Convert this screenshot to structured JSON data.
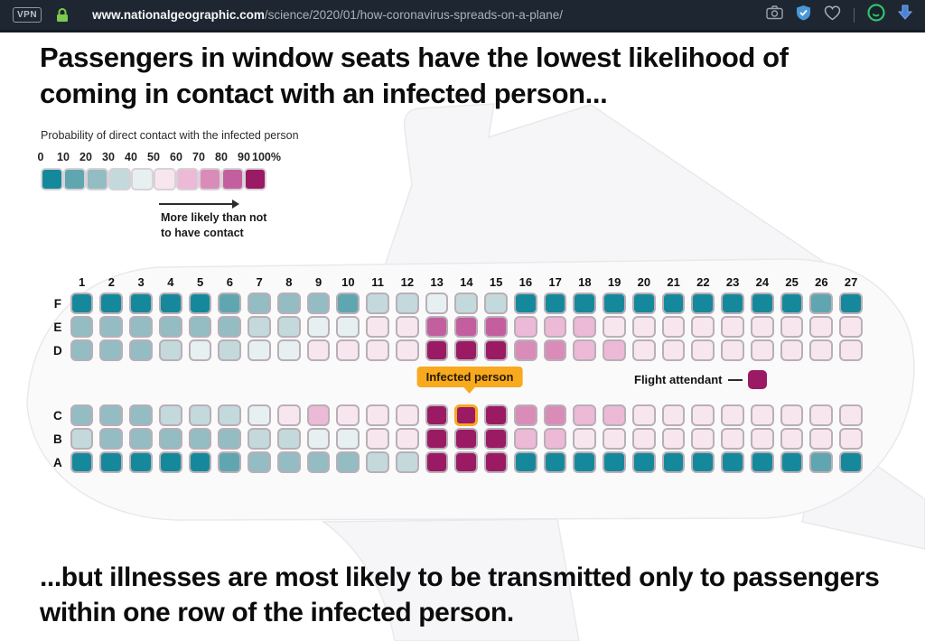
{
  "browser": {
    "vpn_label": "VPN",
    "url_domain": "www.nationalgeographic.com",
    "url_path": "/science/2020/01/how-coronavirus-spreads-on-a-plane/",
    "lock_color": "#7cc94f",
    "shield_color": "#4a97d8",
    "circle_icon_color": "#35c06b",
    "download_color": "#4a82d8",
    "bar_background": "#1e2731"
  },
  "headline": "Passengers in window seats have the lowest likelihood of coming in contact with an infected person...",
  "footline": "...but illnesses are most likely to be transmitted only to passengers within one row of the infected person.",
  "annotations": {
    "infected_label": "Infected person",
    "attendant_label": "Flight attendant",
    "callout_color": "#f8a91d"
  },
  "chart_data": {
    "type": "heatmap",
    "title": "Probability of direct contact with the infected person",
    "legend": {
      "tick_labels": [
        "0",
        "10",
        "20",
        "30",
        "40",
        "50",
        "60",
        "70",
        "80",
        "90",
        "100%"
      ],
      "bucket_labels": [
        "0-10",
        "10-20",
        "20-30",
        "30-40",
        "40-50",
        "50-60",
        "60-70",
        "70-80",
        "80-90",
        "90-100"
      ],
      "colors": [
        "#15899b",
        "#5fa6b0",
        "#93bcc3",
        "#c4d9dc",
        "#e7f0f1",
        "#f8e6ef",
        "#ecb9d6",
        "#da8cb8",
        "#c45f9f",
        "#9a1a64"
      ],
      "arrow_note_line1": "More likely than not",
      "arrow_note_line2": "to have contact"
    },
    "value_encoding": "decile index 0-9 into legend.colors / legend.bucket_labels (percent probability of direct contact)",
    "columns": [
      1,
      2,
      3,
      4,
      5,
      6,
      7,
      8,
      9,
      10,
      11,
      12,
      13,
      14,
      15,
      16,
      17,
      18,
      19,
      20,
      21,
      22,
      23,
      24,
      25,
      26,
      27
    ],
    "rows": [
      {
        "label": "F",
        "values": [
          0,
          0,
          0,
          0,
          0,
          1,
          2,
          2,
          2,
          1,
          3,
          3,
          4,
          3,
          3,
          0,
          0,
          0,
          0,
          0,
          0,
          0,
          0,
          0,
          0,
          1,
          0
        ]
      },
      {
        "label": "E",
        "values": [
          2,
          2,
          2,
          2,
          2,
          2,
          3,
          3,
          4,
          4,
          5,
          5,
          8,
          8,
          8,
          6,
          6,
          6,
          5,
          5,
          5,
          5,
          5,
          5,
          5,
          5,
          5
        ]
      },
      {
        "label": "D",
        "values": [
          2,
          2,
          2,
          3,
          4,
          3,
          4,
          4,
          5,
          5,
          5,
          5,
          9,
          9,
          9,
          7,
          7,
          6,
          6,
          5,
          5,
          5,
          5,
          5,
          5,
          5,
          5
        ]
      },
      {
        "label": "C",
        "values": [
          2,
          2,
          2,
          3,
          3,
          3,
          4,
          5,
          6,
          5,
          5,
          5,
          9,
          9,
          9,
          7,
          7,
          6,
          6,
          5,
          5,
          5,
          5,
          5,
          5,
          5,
          5
        ]
      },
      {
        "label": "B",
        "values": [
          3,
          2,
          2,
          2,
          2,
          2,
          3,
          3,
          4,
          4,
          5,
          5,
          9,
          9,
          9,
          6,
          6,
          5,
          5,
          5,
          5,
          5,
          5,
          5,
          5,
          5,
          5
        ]
      },
      {
        "label": "A",
        "values": [
          0,
          0,
          0,
          0,
          0,
          1,
          2,
          2,
          2,
          2,
          3,
          3,
          9,
          9,
          9,
          0,
          0,
          0,
          0,
          0,
          0,
          0,
          0,
          0,
          0,
          1,
          0
        ]
      }
    ],
    "row_layout": "rows F,E,D form the upper cabin bank (window seat F on top); aisle; rows C,B,A form the lower bank (window seat A at bottom)",
    "infected_seat": {
      "row": "C",
      "column": 14
    },
    "flight_attendant_color": "#9a1a64"
  }
}
